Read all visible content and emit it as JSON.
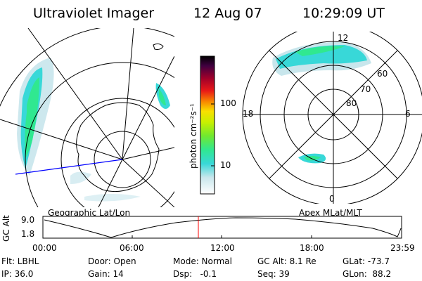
{
  "header": {
    "instrument": "Ultraviolet Imager",
    "date": "12 Aug 07",
    "time": "10:29:09 UT"
  },
  "colorbar": {
    "unit_label": "photon cm⁻²s⁻¹",
    "ticks": [
      "100",
      "10"
    ],
    "scale": "log",
    "colors": [
      "#ffffff",
      "#c8e6ec",
      "#38d8d8",
      "#30e890",
      "#70e830",
      "#c8f000",
      "#f8e000",
      "#f88800",
      "#e81818",
      "#a0002a",
      "#400040",
      "#000000"
    ]
  },
  "geo_panel": {
    "caption": "Geographic Lat/Lon"
  },
  "apex_panel": {
    "caption": "Apex MLat/MLT",
    "mlt_labels": {
      "top": "12",
      "left": "18",
      "right": "6",
      "bottom": "0"
    },
    "lat_labels": [
      "60",
      "70",
      "80"
    ]
  },
  "altitude_plot": {
    "ylabel": "GC Alt",
    "yticks": [
      "9.0",
      "1.8"
    ],
    "xticks": [
      "00:00",
      "06:00",
      "12:00",
      "18:00",
      "23:59"
    ],
    "marker_time": "10:29",
    "marker_color": "#ff0000"
  },
  "status": {
    "row1": {
      "filter": "Flt: LBHL",
      "door": "Door: Open",
      "mode": "Mode: Normal",
      "gc_alt": "GC Alt: 8.1 Re",
      "glat": "GLat: -73.7"
    },
    "row2": {
      "ip": "IP: 36.0",
      "gain": "Gain: 14",
      "dsp": "Dsp:   -0.1",
      "seq": "Seq: 39",
      "glon": "GLon:  88.2"
    }
  }
}
